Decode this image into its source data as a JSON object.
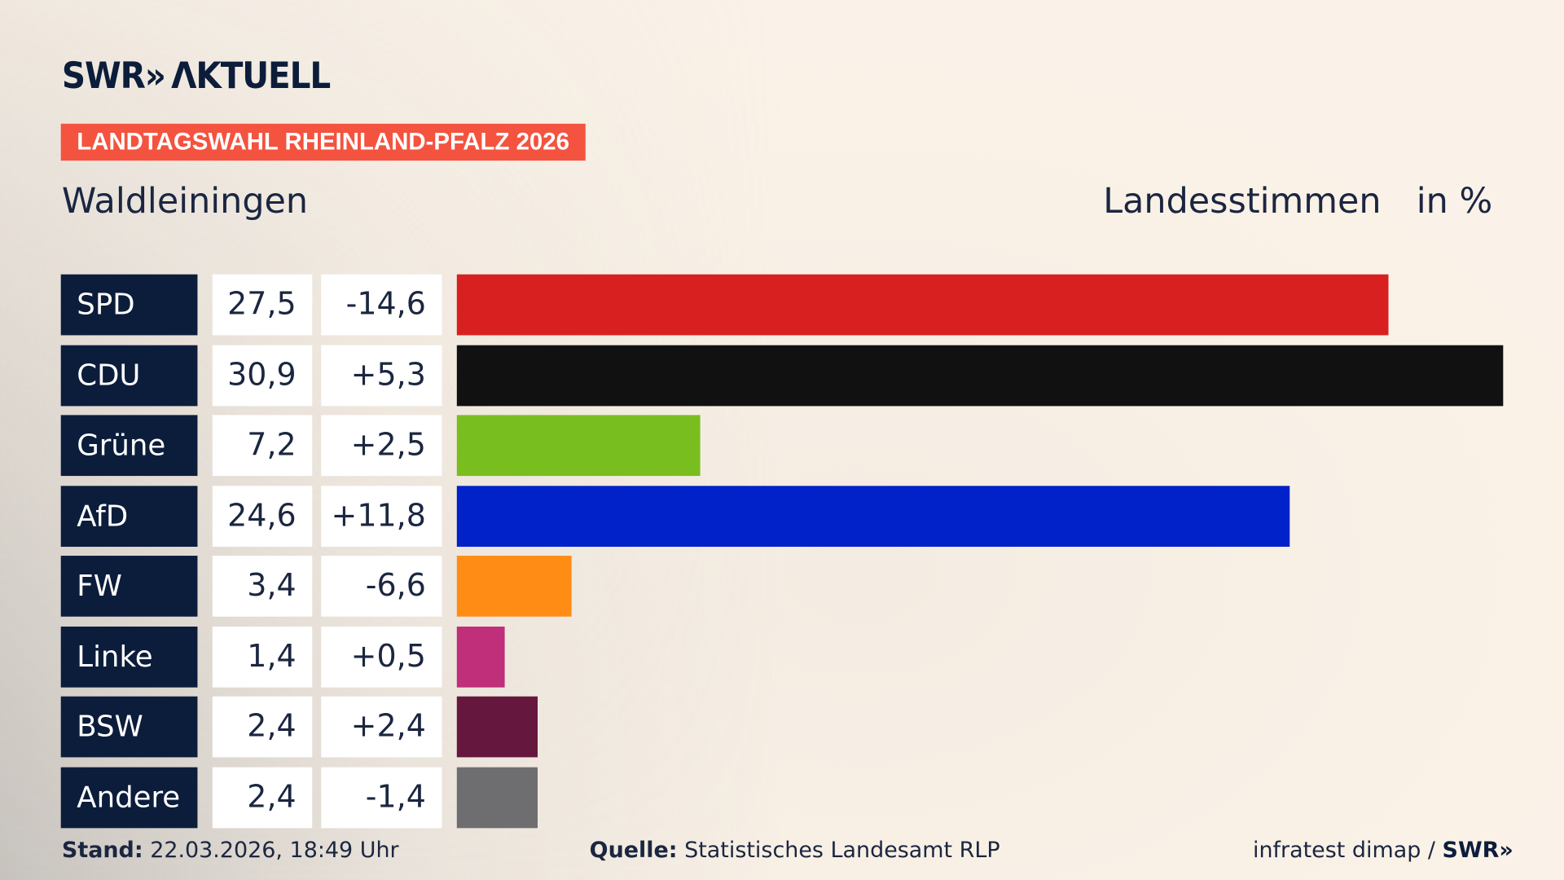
{
  "logo": {
    "text": "SWR» AKTUELL"
  },
  "badge": "LANDTAGSWAHL RHEINLAND-PFALZ 2026",
  "header": {
    "location": "Waldleiningen",
    "type": "Landesstimmen",
    "unit": "in %"
  },
  "chart_data": {
    "type": "bar",
    "orientation": "horizontal",
    "categories": [
      "SPD",
      "CDU",
      "Grüne",
      "AfD",
      "FW",
      "Linke",
      "BSW",
      "Andere"
    ],
    "values": [
      27.5,
      30.9,
      7.2,
      24.6,
      3.4,
      1.4,
      2.4,
      2.4
    ],
    "value_labels": [
      "27,5",
      "30,9",
      "7,2",
      "24,6",
      "3,4",
      "1,4",
      "2,4",
      "2,4"
    ],
    "diff_labels": [
      "-14,6",
      "+5,3",
      "+2,5",
      "+11,8",
      "-6,6",
      "+0,5",
      "+2,4",
      "-1,4"
    ],
    "diffs": [
      -14.6,
      5.3,
      2.5,
      11.8,
      -6.6,
      0.5,
      2.4,
      -1.4
    ],
    "colors": [
      "#d82020",
      "#111111",
      "#78be1e",
      "#0022c8",
      "#ff8c15",
      "#bf2f7a",
      "#66173e",
      "#6e6e70"
    ],
    "xlim": [
      0,
      30.9
    ],
    "grid": false
  },
  "footer": {
    "stand_label": "Stand:",
    "stand_value": "22.03.2026, 18:49 Uhr",
    "source_label": "Quelle:",
    "source_value": "Statistisches Landesamt RLP",
    "credit": "infratest dimap /",
    "credit_logo": "SWR»"
  }
}
